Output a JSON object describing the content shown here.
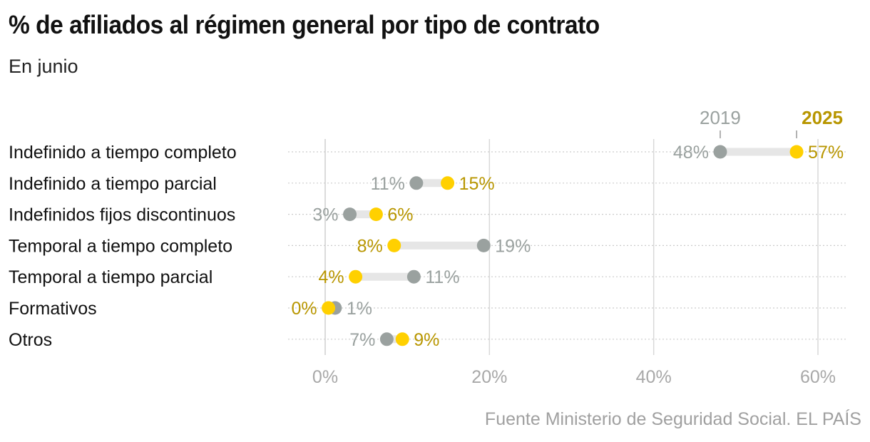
{
  "title": "% de afiliados al régimen general por tipo de contrato",
  "subtitle": "En junio",
  "source": "Fuente Ministerio de Seguridad Social. EL PAÍS",
  "colors": {
    "y2019": "#9aa19f",
    "y2025": "#ffd000",
    "label2019": "#9aa19f",
    "label2025": "#b89600",
    "connector": "#e6e6e6",
    "grid": "#d9d9d9"
  },
  "chart_data": {
    "type": "dumbbell",
    "title": "% de afiliados al régimen general por tipo de contrato",
    "subtitle": "En junio",
    "xlabel": "",
    "ylabel": "",
    "xlim": [
      0,
      60
    ],
    "x_ticks": [
      0,
      20,
      40,
      60
    ],
    "x_tick_labels": [
      "0%",
      "20%",
      "40%",
      "60%"
    ],
    "grid": true,
    "legend": {
      "placement": "top-right",
      "entries": [
        "2019",
        "2025"
      ]
    },
    "categories": [
      "Indefinido a tiempo completo",
      "Indefinido a tiempo parcial",
      "Indefinidos fijos discontinuos",
      "Temporal a tiempo completo",
      "Temporal a tiempo parcial",
      "Formativos",
      "Otros"
    ],
    "series": [
      {
        "name": "2019",
        "values": [
          48.1,
          11.1,
          3.0,
          19.3,
          10.8,
          1.2,
          7.5
        ],
        "labels": [
          "48%",
          "11%",
          "3%",
          "19%",
          "11%",
          "1%",
          "7%"
        ]
      },
      {
        "name": "2025",
        "values": [
          57.4,
          14.9,
          6.2,
          8.4,
          3.7,
          0.4,
          9.4
        ],
        "labels": [
          "57%",
          "15%",
          "6%",
          "8%",
          "4%",
          "0%",
          "9%"
        ]
      }
    ]
  }
}
